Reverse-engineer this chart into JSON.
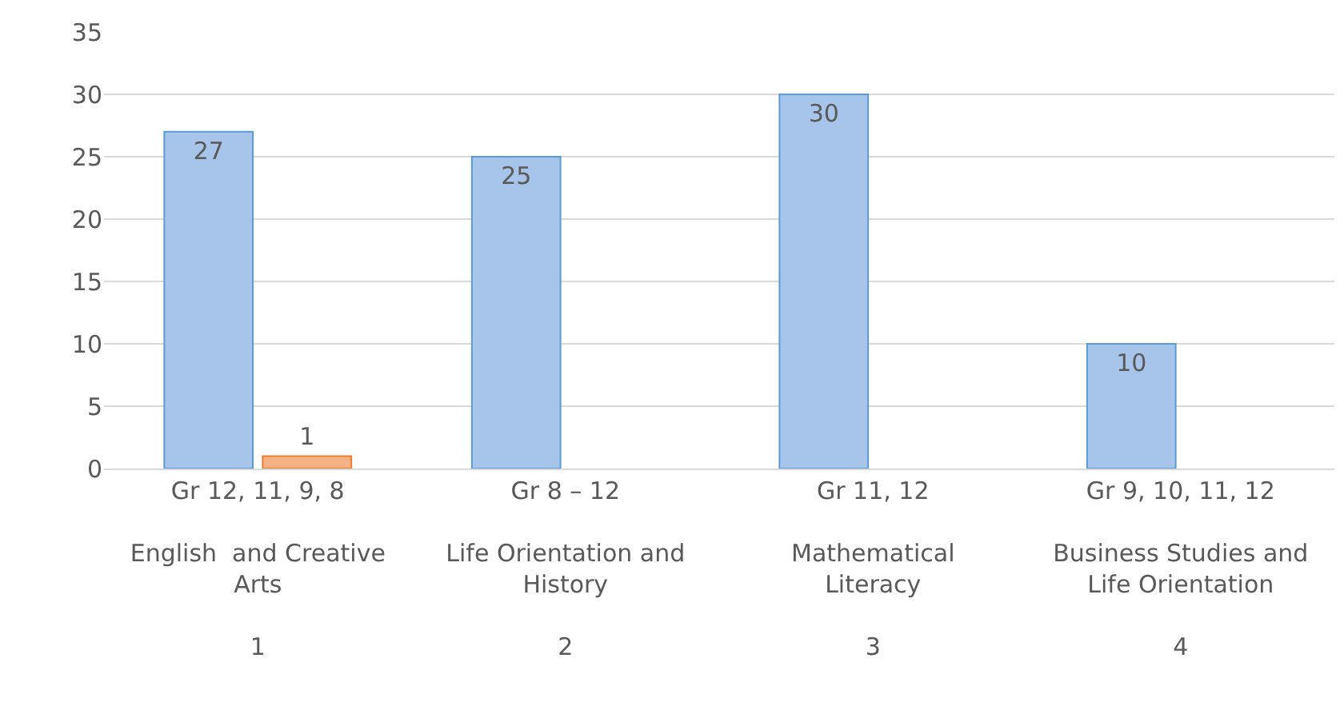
{
  "chart_data": {
    "type": "bar",
    "categories": [
      "Gr 12, 11, 9, 8\n\nEnglish  and Creative\nArts\n\n1",
      "Gr 8 – 12\n\nLife Orientation and\nHistory\n\n2",
      "Gr 11, 12\n\nMathematical\nLiteracy\n\n3",
      "Gr 9, 10, 11, 12\n\nBusiness Studies and\nLife Orientation\n\n4"
    ],
    "series": [
      {
        "color": "#a7c5ea",
        "values": [
          27,
          25,
          30,
          10
        ]
      },
      {
        "color": "#f4b183",
        "values": [
          1,
          null,
          null,
          null
        ]
      }
    ],
    "ylim": [
      0,
      35
    ],
    "yticks": [
      0,
      5,
      10,
      15,
      20,
      25,
      30,
      35
    ],
    "grid": "y",
    "legend": false,
    "data_labels": true
  }
}
